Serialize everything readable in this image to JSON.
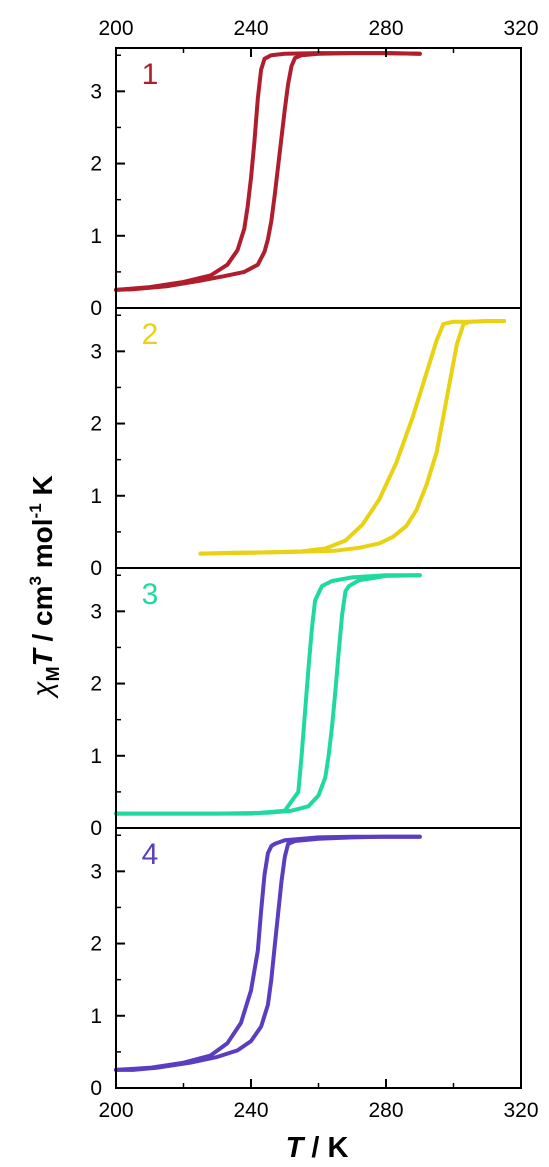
{
  "chart_data": {
    "type": "line",
    "xlabel": "T / K",
    "ylabel": "χMT / cm3 mol-1 K",
    "xlim": [
      200,
      320
    ],
    "xticks": [
      "200",
      "240",
      "280",
      "320"
    ],
    "ylim": [
      0,
      3.6
    ],
    "yticks": [
      "0",
      "1",
      "2",
      "3"
    ],
    "grid": false,
    "panels": [
      {
        "label": "1",
        "color": "#B01E2E",
        "series": [
          {
            "x": [
              200,
              210,
              220,
              228,
              233,
              236,
              238,
              239,
              240,
              241,
              242,
              243,
              244,
              246,
              250,
              260,
              270,
              280,
              290
            ],
            "y": [
              0.25,
              0.29,
              0.36,
              0.45,
              0.6,
              0.8,
              1.1,
              1.4,
              1.8,
              2.3,
              2.9,
              3.3,
              3.45,
              3.5,
              3.52,
              3.53,
              3.53,
              3.53,
              3.52
            ]
          },
          {
            "x": [
              290,
              280,
              270,
              260,
              255,
              253,
              252,
              251,
              250,
              249,
              248,
              247,
              246,
              245,
              244,
              242,
              238,
              232,
              225,
              215,
              205,
              200
            ],
            "y": [
              3.52,
              3.53,
              3.53,
              3.52,
              3.5,
              3.46,
              3.35,
              3.1,
              2.75,
              2.35,
              1.95,
              1.55,
              1.2,
              0.95,
              0.78,
              0.6,
              0.5,
              0.44,
              0.38,
              0.3,
              0.26,
              0.25
            ]
          }
        ]
      },
      {
        "label": "2",
        "color": "#E8D213",
        "series": [
          {
            "x": [
              225,
              240,
              255,
              262,
              268,
              273,
              278,
              283,
              288,
              292,
              295,
              297,
              300,
              305,
              310,
              315
            ],
            "y": [
              0.2,
              0.21,
              0.23,
              0.27,
              0.38,
              0.6,
              0.95,
              1.45,
              2.1,
              2.7,
              3.15,
              3.38,
              3.41,
              3.41,
              3.42,
              3.42
            ]
          },
          {
            "x": [
              315,
              310,
              305,
              303,
              301,
              299,
              297,
              295,
              292,
              289,
              286,
              282,
              278,
              272,
              265,
              250,
              235,
              225
            ],
            "y": [
              3.42,
              3.42,
              3.41,
              3.38,
              3.1,
              2.6,
              2.1,
              1.6,
              1.15,
              0.8,
              0.58,
              0.43,
              0.34,
              0.28,
              0.24,
              0.22,
              0.21,
              0.2
            ]
          }
        ]
      },
      {
        "label": "3",
        "color": "#20D9A0",
        "series": [
          {
            "x": [
              200,
              220,
              240,
              250,
              254,
              255,
              256,
              257,
              258,
              259,
              261,
              264,
              270,
              280,
              290
            ],
            "y": [
              0.2,
              0.2,
              0.2,
              0.24,
              0.5,
              1.0,
              1.6,
              2.2,
              2.75,
              3.15,
              3.35,
              3.42,
              3.47,
              3.5,
              3.5
            ]
          },
          {
            "x": [
              290,
              280,
              272,
              269,
              268,
              267,
              266,
              265,
              264,
              263,
              262,
              260,
              257,
              252,
              245,
              230,
              215,
              200
            ],
            "y": [
              3.5,
              3.49,
              3.43,
              3.35,
              3.28,
              2.95,
              2.45,
              1.9,
              1.4,
              1.0,
              0.7,
              0.45,
              0.3,
              0.24,
              0.21,
              0.2,
              0.2,
              0.2
            ]
          }
        ]
      },
      {
        "label": "4",
        "color": "#5A3DC0",
        "series": [
          {
            "x": [
              200,
              210,
              220,
              228,
              233,
              237,
              240,
              242,
              243,
              244,
              245,
              246,
              247,
              250,
              260,
              270,
              280,
              290
            ],
            "y": [
              0.25,
              0.28,
              0.35,
              0.45,
              0.62,
              0.9,
              1.35,
              1.9,
              2.45,
              2.95,
              3.25,
              3.35,
              3.38,
              3.43,
              3.47,
              3.48,
              3.48,
              3.48
            ]
          },
          {
            "x": [
              290,
              280,
              270,
              260,
              253,
              251,
              250,
              249,
              248,
              247,
              246,
              245,
              243,
              240,
              236,
              230,
              222,
              212,
              205,
              200
            ],
            "y": [
              3.48,
              3.48,
              3.47,
              3.45,
              3.42,
              3.38,
              3.2,
              2.85,
              2.4,
              1.95,
              1.5,
              1.15,
              0.85,
              0.65,
              0.52,
              0.43,
              0.35,
              0.28,
              0.25,
              0.25
            ]
          }
        ]
      }
    ]
  }
}
